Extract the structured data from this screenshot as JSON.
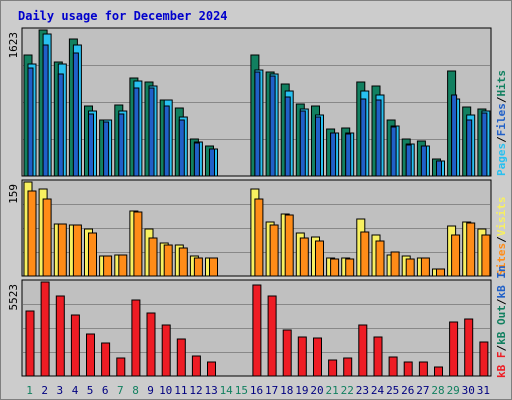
{
  "title": "Daily usage for December 2024",
  "colors": {
    "background": "#cccccc",
    "plot_background": "#c0c0c0",
    "hits": "#128060",
    "files": "#28c0f0",
    "pages": "#2060c8",
    "visits": "#f8f060",
    "sites": "#ff8c18",
    "kb_in": "#ee1c24",
    "kb_out": "#128060",
    "kb_f": "#ee1c24",
    "weekday_label": "#128060",
    "weekend_label": "#000080",
    "title": "#0000cc"
  },
  "right_labels": {
    "top": [
      "Pages",
      "/",
      "Files",
      "/",
      "Hits"
    ],
    "middle": [
      "Sites",
      "/",
      "Visits"
    ],
    "bottom": [
      "kB F",
      "/",
      "kB Out",
      "/",
      "kB In"
    ]
  },
  "chart_data": {
    "type": "bar",
    "title": "Daily usage for December 2024",
    "categories": [
      "1",
      "2",
      "3",
      "4",
      "5",
      "6",
      "7",
      "8",
      "9",
      "10",
      "11",
      "12",
      "13",
      "14",
      "15",
      "16",
      "17",
      "18",
      "19",
      "20",
      "21",
      "22",
      "23",
      "24",
      "25",
      "26",
      "27",
      "28",
      "29",
      "30",
      "31"
    ],
    "weekend_days": [
      "1",
      "7",
      "8",
      "14",
      "15",
      "21",
      "22",
      "28",
      "29"
    ],
    "panels": [
      {
        "name": "top",
        "ymax_label": "1623",
        "ylim": [
          0,
          1623
        ],
        "grid": true,
        "series": [
          {
            "name": "Hits",
            "values": [
              1350,
              1623,
              1270,
              1520,
              780,
              620,
              790,
              1090,
              1040,
              840,
              760,
              410,
              330,
              0,
              0,
              1350,
              1160,
              1020,
              800,
              780,
              520,
              530,
              1040,
              1000,
              620,
              410,
              390,
              190,
              1170,
              770,
              740
            ]
          },
          {
            "name": "Files",
            "values": [
              1250,
              1580,
              1240,
              1460,
              720,
              620,
              720,
              1060,
              1000,
              840,
              660,
              380,
              300,
              0,
              0,
              1180,
              1130,
              940,
              740,
              680,
              480,
              480,
              950,
              900,
              560,
              360,
              330,
              170,
              860,
              680,
              720
            ]
          },
          {
            "name": "Pages",
            "values": [
              1200,
              1460,
              1130,
              1370,
              690,
              600,
              690,
              980,
              980,
              780,
              620,
              370,
              300,
              0,
              0,
              1160,
              1110,
              880,
              720,
              660,
              480,
              470,
              860,
              840,
              550,
              340,
              330,
              170,
              900,
              620,
              700
            ]
          }
        ]
      },
      {
        "name": "middle",
        "ymax_label": "159",
        "ylim": [
          0,
          159
        ],
        "grid": true,
        "series": [
          {
            "name": "Visits",
            "values": [
              159,
              148,
              88,
              86,
              80,
              33,
              36,
              110,
              80,
              55,
              52,
              34,
              31,
              0,
              0,
              148,
              91,
              105,
              72,
              66,
              31,
              30,
              96,
              70,
              36,
              34,
              31,
              11,
              84,
              92,
              79
            ]
          },
          {
            "name": "Sites",
            "values": [
              143,
              130,
              88,
              86,
              73,
              33,
              35,
              108,
              65,
              52,
              47,
              30,
              31,
              0,
              0,
              130,
              87,
              103,
              64,
              60,
              29,
              28,
              75,
              60,
              40,
              29,
              30,
              11,
              69,
              90,
              70
            ]
          }
        ]
      },
      {
        "name": "bottom",
        "ymax_label": "5523",
        "ylim": [
          0,
          5523
        ],
        "grid": true,
        "series": [
          {
            "name": "kB In",
            "values": [
              3840,
              5523,
              4690,
              3580,
              2480,
              1940,
              1070,
              4490,
              3690,
              3010,
              2170,
              1190,
              810,
              0,
              0,
              5350,
              4680,
              2720,
              2270,
              2240,
              920,
              1030,
              2970,
              2290,
              1090,
              810,
              810,
              520,
              3150,
              3320,
              1990
            ]
          }
        ]
      }
    ]
  }
}
